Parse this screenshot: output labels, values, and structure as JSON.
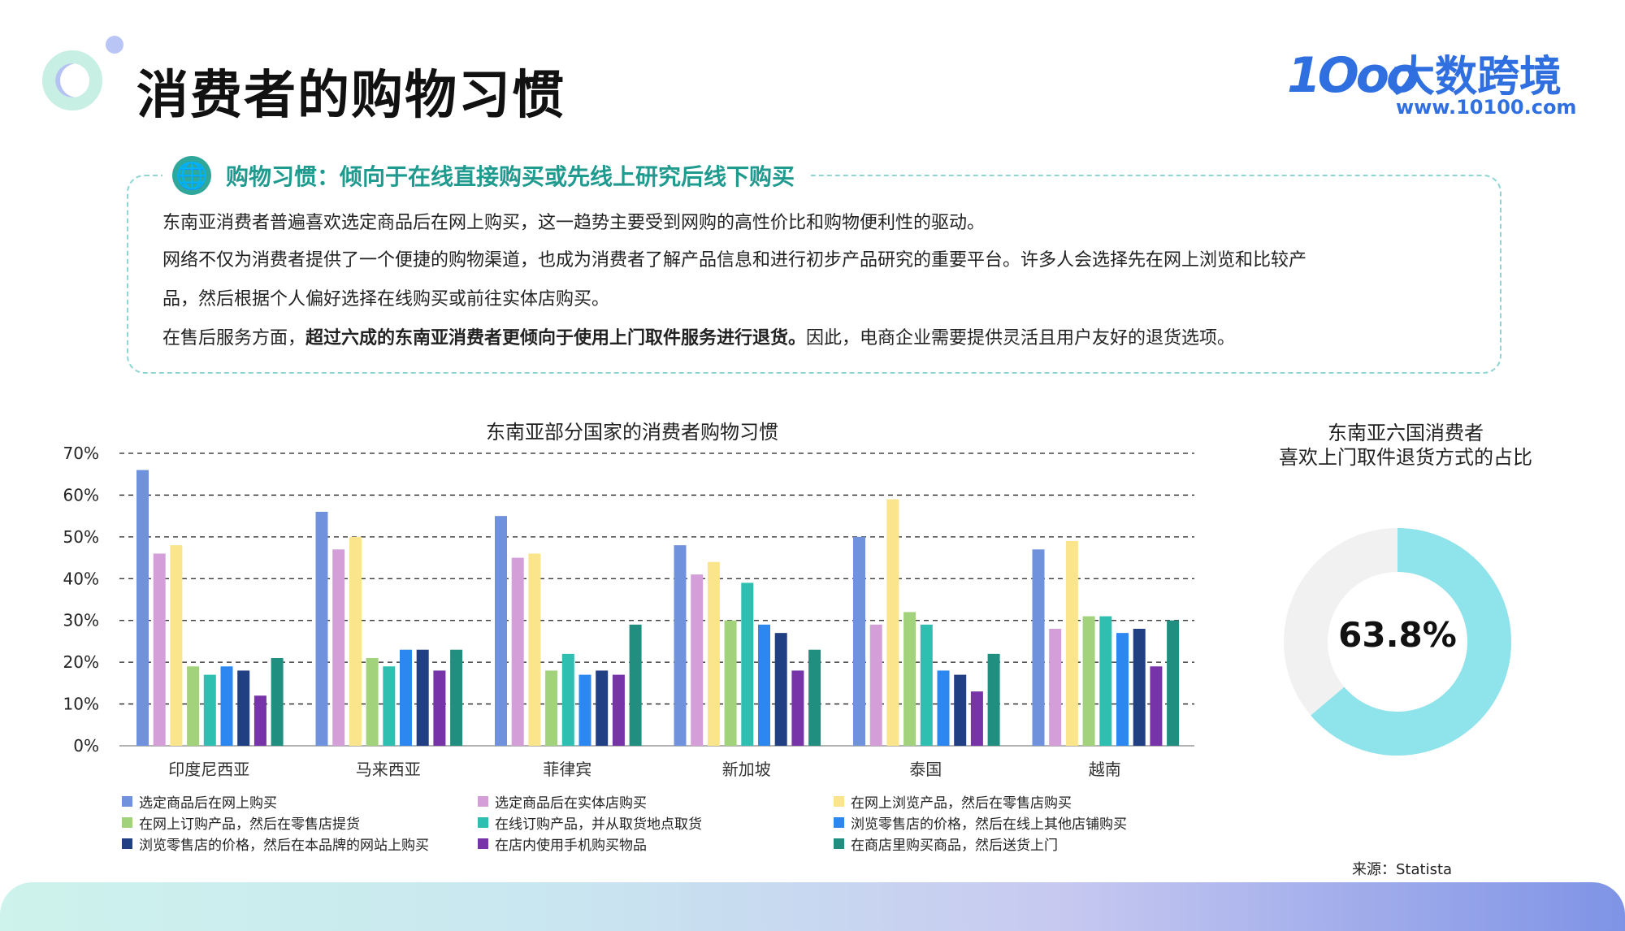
{
  "header": {
    "title": "消费者的购物习惯",
    "brand_mark": "1Ooo",
    "brand_name": "大数跨境",
    "brand_url": "www.10100.com"
  },
  "info": {
    "heading": "购物习惯：倾向于在线直接购买或先线上研究后线下购买",
    "p1": "东南亚消费者普遍喜欢选定商品后在网上购买，这一趋势主要受到网购的高性价比和购物便利性的驱动。",
    "p2a": "网络不仅为消费者提供了一个便捷的购物渠道，也成为消费者了解产品信息和进行初步产品研究的重要平台。许多人会选择先在网上浏览和比较产",
    "p2b": "品，然后根据个人偏好选择在线购买或前往实体店购买。",
    "p3_start": "在售后服务方面，",
    "p3_bold": "超过六成的东南亚消费者更倾向于使用上门取件服务进行退货。",
    "p3_end": "因此，电商企业需要提供灵活且用户友好的退货选项。"
  },
  "chart_data": [
    {
      "type": "bar",
      "title": "东南亚部分国家的消费者购物习惯",
      "categories": [
        "印度尼西亚",
        "马来西亚",
        "菲律宾",
        "新加坡",
        "泰国",
        "越南"
      ],
      "ylim": [
        0,
        70
      ],
      "yticks": [
        "0%",
        "10%",
        "20%",
        "30%",
        "40%",
        "50%",
        "60%",
        "70%"
      ],
      "grid": true,
      "legend_position": "bottom",
      "series": [
        {
          "name": "选定商品后在网上购买",
          "color": "#7092dc",
          "values": [
            66,
            56,
            55,
            48,
            50,
            47
          ]
        },
        {
          "name": "选定商品后在实体店购买",
          "color": "#d49fd8",
          "values": [
            46,
            47,
            45,
            41,
            29,
            28
          ]
        },
        {
          "name": "在网上浏览产品，然后在零售店购买",
          "color": "#fbe58c",
          "values": [
            48,
            50,
            46,
            44,
            59,
            49
          ]
        },
        {
          "name": "在网上订购产品，然后在零售店提货",
          "color": "#a3d27c",
          "values": [
            19,
            21,
            18,
            30,
            32,
            31
          ]
        },
        {
          "name": "在线订购产品，并从取货地点取货",
          "color": "#2fbfb1",
          "values": [
            17,
            19,
            22,
            39,
            29,
            31
          ]
        },
        {
          "name": "浏览零售店的价格，然后在线上其他店铺购买",
          "color": "#2c88f0",
          "values": [
            19,
            23,
            17,
            29,
            18,
            27
          ]
        },
        {
          "name": "浏览零售店的价格，然后在本品牌的网站上购买",
          "color": "#213f83",
          "values": [
            18,
            23,
            18,
            27,
            17,
            28
          ]
        },
        {
          "name": "在店内使用手机购买物品",
          "color": "#7634a8",
          "values": [
            12,
            18,
            17,
            18,
            13,
            19
          ]
        },
        {
          "name": "在商店里购买商品，然后送货上门",
          "color": "#218f7f",
          "values": [
            21,
            23,
            29,
            23,
            22,
            30
          ]
        }
      ]
    },
    {
      "type": "pie",
      "title_line1": "东南亚六国消费者",
      "title_line2": "喜欢上门取件退货方式的占比",
      "value": 63.8,
      "label": "63.8%",
      "colors": {
        "value": "#8fe3ea",
        "rest": "#f1f1f1"
      }
    }
  ],
  "source": "来源：Statista"
}
